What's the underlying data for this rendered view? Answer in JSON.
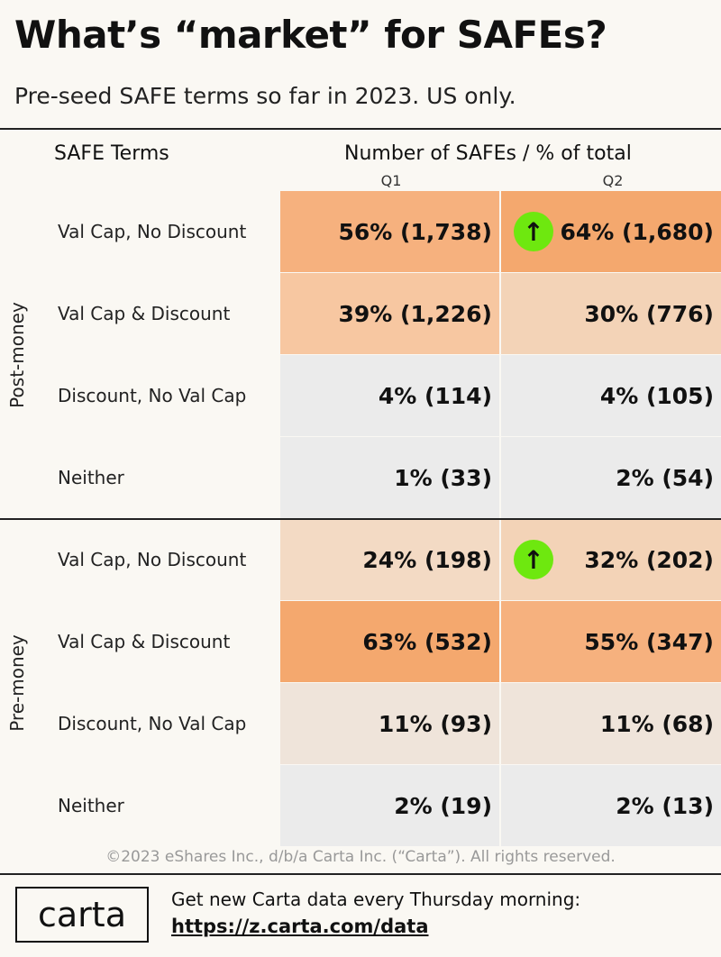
{
  "title": "What’s “market” for SAFEs?",
  "subtitle": "Pre-seed SAFE terms so far in 2023. US only.",
  "headers": {
    "terms": "SAFE Terms",
    "number": "Number of SAFEs / % of total",
    "q1": "Q1",
    "q2": "Q2"
  },
  "groups": [
    {
      "name": "Post-money",
      "rows": [
        {
          "term": "Val Cap, No Discount",
          "q1": "56% (1,738)",
          "q2": "64% (1,680)",
          "q1_bg": "#f6b17e",
          "q2_bg": "#f4a86e",
          "q2_up": true
        },
        {
          "term": "Val Cap & Discount",
          "q1": "39% (1,226)",
          "q2": "30% (776)",
          "q1_bg": "#f7c7a1",
          "q2_bg": "#f3d3b7",
          "q2_up": false
        },
        {
          "term": "Discount, No Val Cap",
          "q1": "4% (114)",
          "q2": "4% (105)",
          "q1_bg": "#ebebeb",
          "q2_bg": "#ebebeb",
          "q2_up": false
        },
        {
          "term": "Neither",
          "q1": "1% (33)",
          "q2": "2% (54)",
          "q1_bg": "#ebebeb",
          "q2_bg": "#ebebeb",
          "q2_up": false
        }
      ]
    },
    {
      "name": "Pre-money",
      "rows": [
        {
          "term": "Val Cap, No Discount",
          "q1": "24% (198)",
          "q2": "32% (202)",
          "q1_bg": "#f3dac4",
          "q2_bg": "#f3d3b7",
          "q2_up": true
        },
        {
          "term": "Val Cap & Discount",
          "q1": "63% (532)",
          "q2": "55% (347)",
          "q1_bg": "#f4a86e",
          "q2_bg": "#f6b17e",
          "q2_up": false
        },
        {
          "term": "Discount, No Val Cap",
          "q1": "11% (93)",
          "q2": "11% (68)",
          "q1_bg": "#efe4da",
          "q2_bg": "#efe4da",
          "q2_up": false
        },
        {
          "term": "Neither",
          "q1": "2% (19)",
          "q2": "2% (13)",
          "q1_bg": "#ebebeb",
          "q2_bg": "#ebebeb",
          "q2_up": false
        }
      ]
    }
  ],
  "arrow_symbol": "↑",
  "copyright": "©2023 eShares Inc., d/b/a Carta Inc. (“Carta”). All rights reserved.",
  "footer": {
    "logo": "carta",
    "text": "Get new Carta data every Thursday morning:",
    "link": "https://z.carta.com/data"
  },
  "chart_data": {
    "type": "table",
    "title": "What’s “market” for SAFEs?",
    "subtitle": "Pre-seed SAFE terms so far in 2023. US only.",
    "columns": [
      "Q1",
      "Q2"
    ],
    "groups": [
      {
        "name": "Post-money",
        "rows": [
          {
            "term": "Val Cap, No Discount",
            "Q1": {
              "pct": 56,
              "count": 1738
            },
            "Q2": {
              "pct": 64,
              "count": 1680
            }
          },
          {
            "term": "Val Cap & Discount",
            "Q1": {
              "pct": 39,
              "count": 1226
            },
            "Q2": {
              "pct": 30,
              "count": 776
            }
          },
          {
            "term": "Discount, No Val Cap",
            "Q1": {
              "pct": 4,
              "count": 114
            },
            "Q2": {
              "pct": 4,
              "count": 105
            }
          },
          {
            "term": "Neither",
            "Q1": {
              "pct": 1,
              "count": 33
            },
            "Q2": {
              "pct": 2,
              "count": 54
            }
          }
        ]
      },
      {
        "name": "Pre-money",
        "rows": [
          {
            "term": "Val Cap, No Discount",
            "Q1": {
              "pct": 24,
              "count": 198
            },
            "Q2": {
              "pct": 32,
              "count": 202
            }
          },
          {
            "term": "Val Cap & Discount",
            "Q1": {
              "pct": 63,
              "count": 532
            },
            "Q2": {
              "pct": 55,
              "count": 347
            }
          },
          {
            "term": "Discount, No Val Cap",
            "Q1": {
              "pct": 11,
              "count": 93
            },
            "Q2": {
              "pct": 11,
              "count": 68
            }
          },
          {
            "term": "Neither",
            "Q1": {
              "pct": 2,
              "count": 19
            },
            "Q2": {
              "pct": 2,
              "count": 13
            }
          }
        ]
      }
    ]
  }
}
